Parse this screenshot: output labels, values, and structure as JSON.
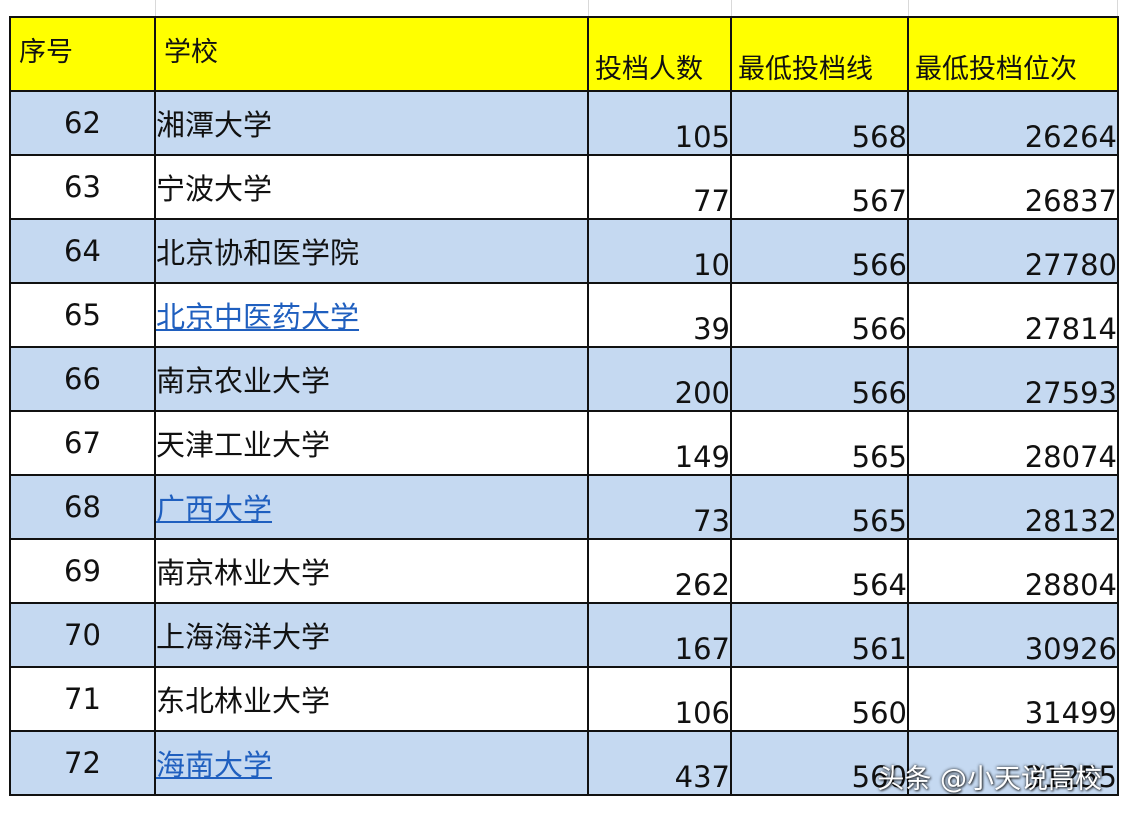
{
  "table": {
    "headers": [
      "序号",
      "学校",
      "投档人数",
      "最低投档线",
      "最低投档位次"
    ],
    "rows": [
      {
        "idx": "62",
        "school": "湘潭大学",
        "count": "105",
        "score": "568",
        "rank": "26264",
        "link": false
      },
      {
        "idx": "63",
        "school": "宁波大学",
        "count": "77",
        "score": "567",
        "rank": "26837",
        "link": false
      },
      {
        "idx": "64",
        "school": "北京协和医学院",
        "count": "10",
        "score": "566",
        "rank": "27780",
        "link": false
      },
      {
        "idx": "65",
        "school": "北京中医药大学",
        "count": "39",
        "score": "566",
        "rank": "27814",
        "link": true
      },
      {
        "idx": "66",
        "school": "南京农业大学",
        "count": "200",
        "score": "566",
        "rank": "27593",
        "link": false
      },
      {
        "idx": "67",
        "school": "天津工业大学",
        "count": "149",
        "score": "565",
        "rank": "28074",
        "link": false
      },
      {
        "idx": "68",
        "school": "广西大学",
        "count": "73",
        "score": "565",
        "rank": "28132",
        "link": true
      },
      {
        "idx": "69",
        "school": "南京林业大学",
        "count": "262",
        "score": "564",
        "rank": "28804",
        "link": false
      },
      {
        "idx": "70",
        "school": "上海海洋大学",
        "count": "167",
        "score": "561",
        "rank": "30926",
        "link": false
      },
      {
        "idx": "71",
        "school": "东北林业大学",
        "count": "106",
        "score": "560",
        "rank": "31499",
        "link": false
      },
      {
        "idx": "72",
        "school": "海南大学",
        "count": "437",
        "score": "560",
        "rank": "31255",
        "link": true
      }
    ]
  },
  "watermark": "头条 @小天说高校",
  "colors": {
    "header_fill": "#ffff00",
    "shaded_row": "#c5d9f1",
    "link": "#1f5fbf"
  }
}
